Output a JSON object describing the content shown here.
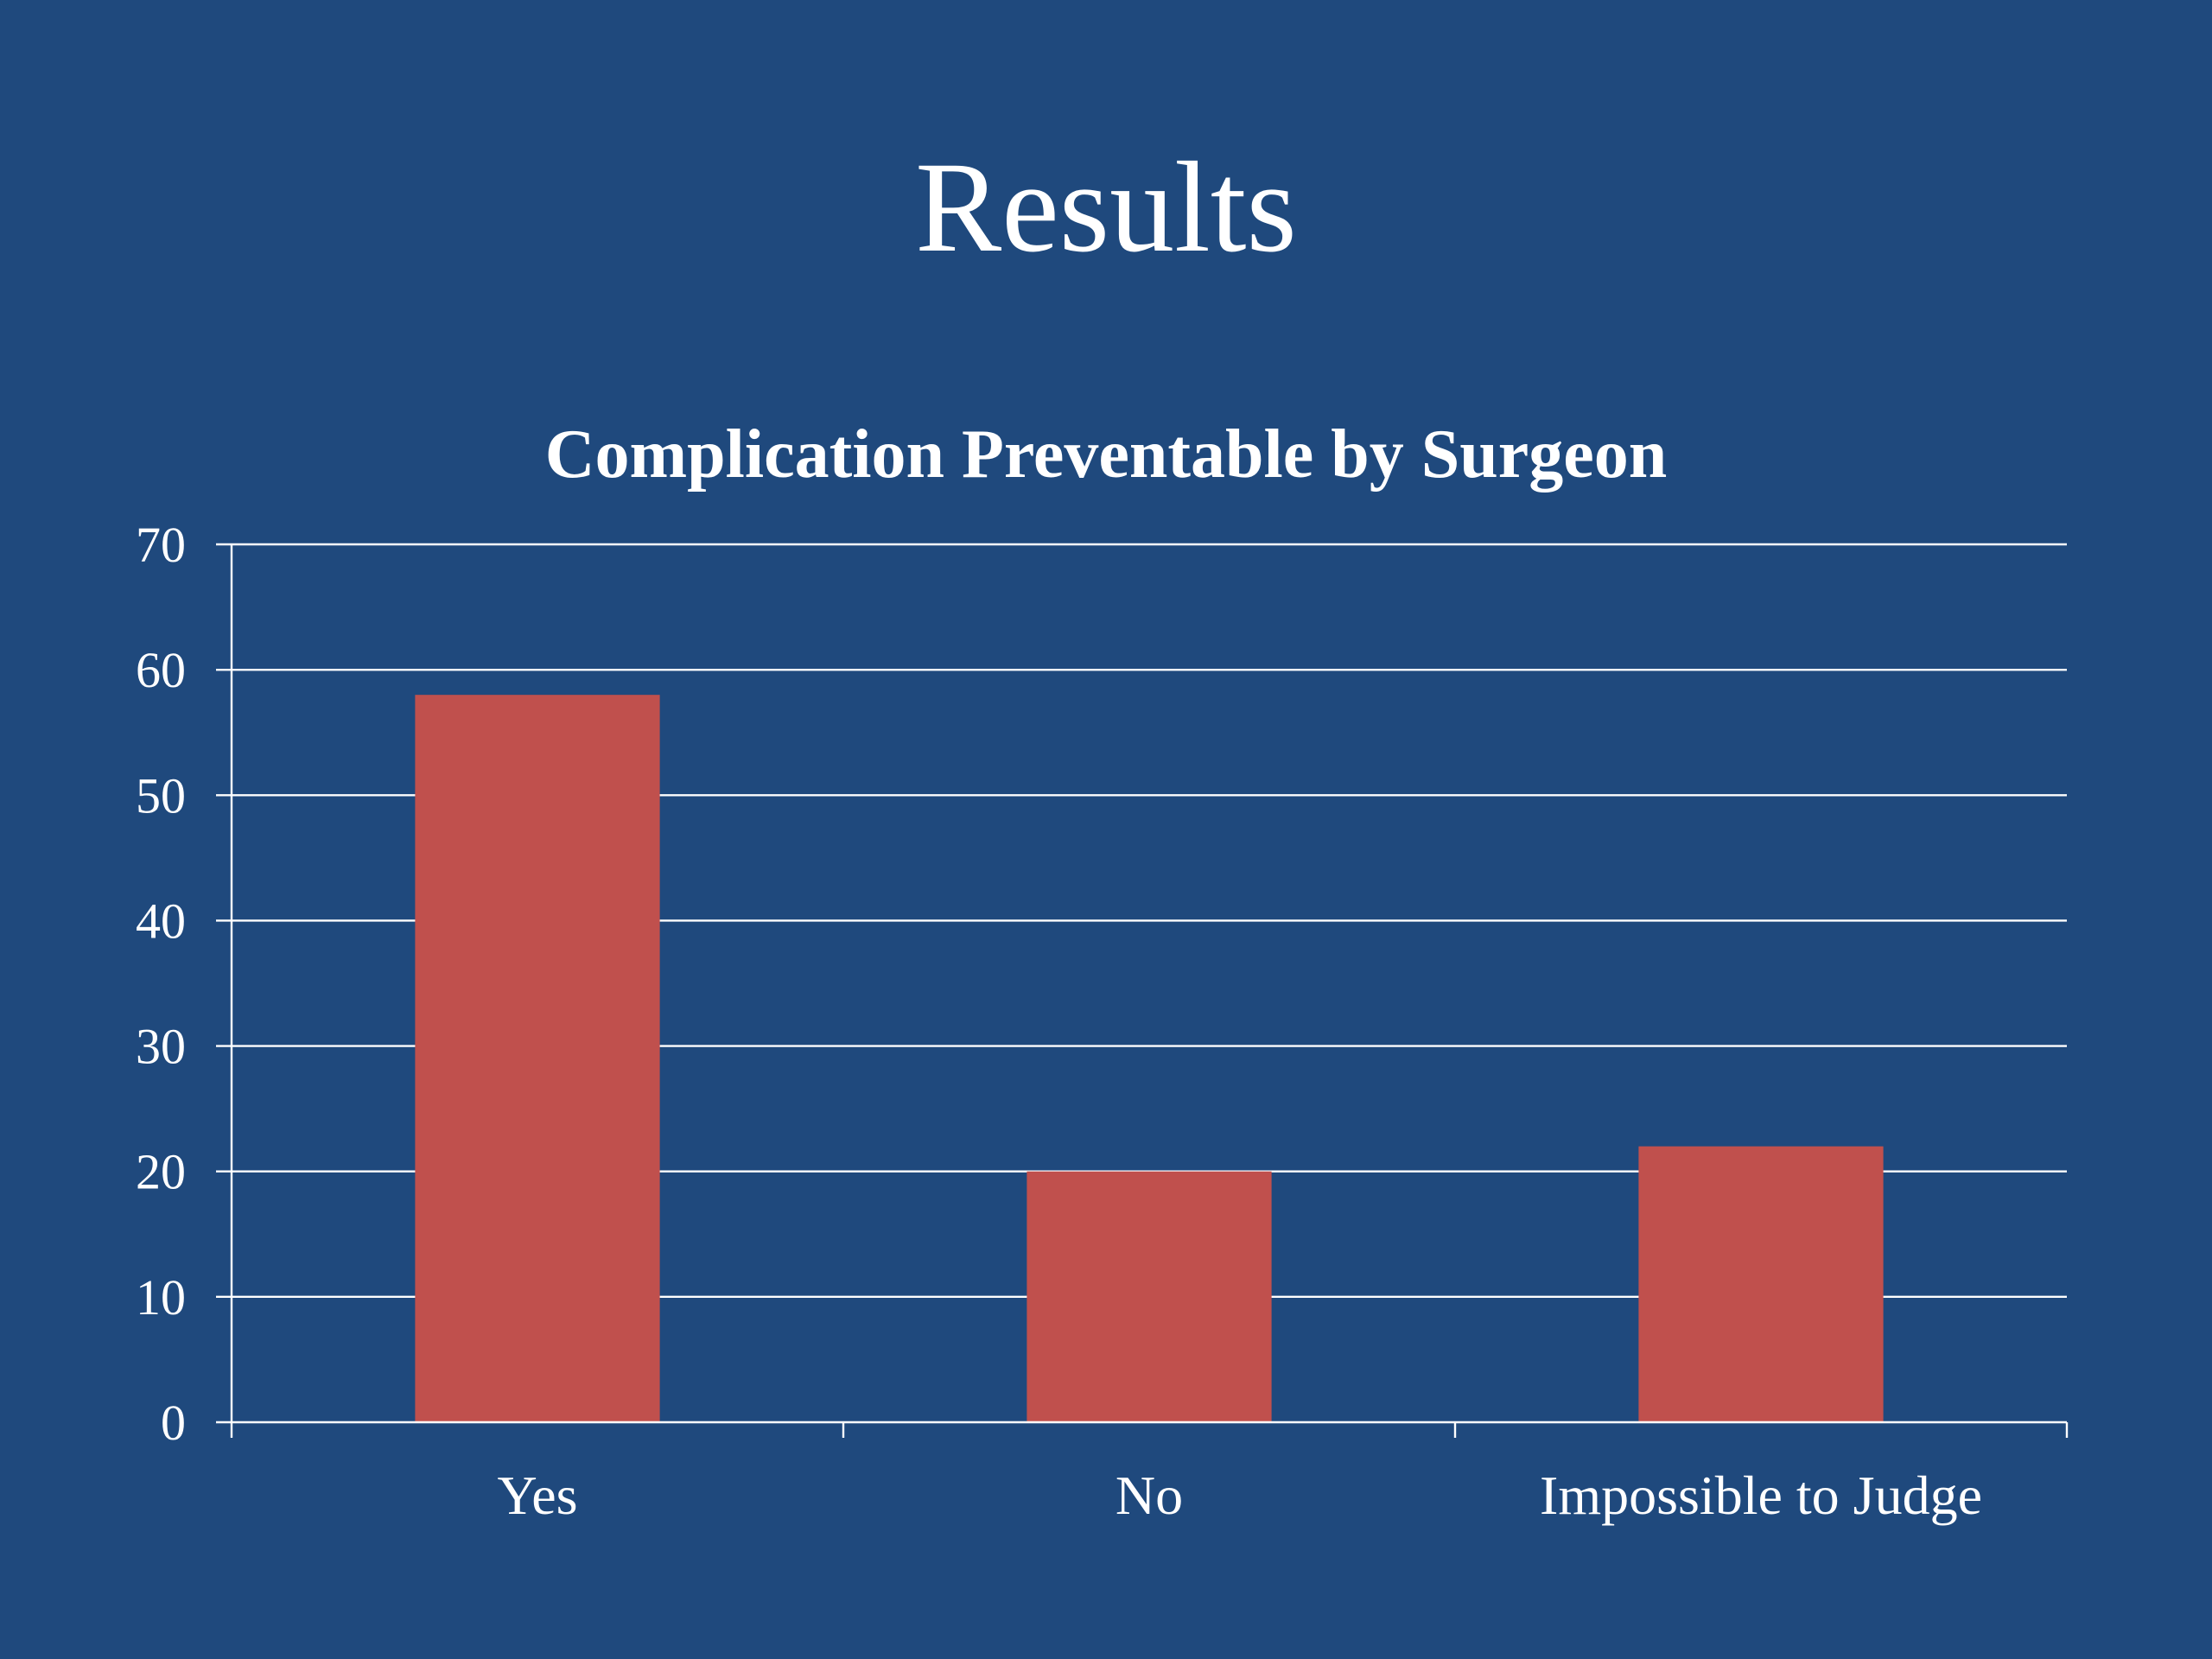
{
  "slide": {
    "title": "Results"
  },
  "colors": {
    "background": "#1f497d",
    "bar": "#c0504d",
    "text": "#ffffff",
    "gridline": "#ffffff"
  },
  "chart_data": {
    "type": "bar",
    "title": "Complication Preventable by Surgeon",
    "categories": [
      "Yes",
      "No",
      "Impossible to Judge"
    ],
    "series": [
      {
        "values": [
          58,
          20,
          22
        ]
      }
    ],
    "ylim": [
      0,
      70
    ],
    "yticks": [
      0,
      10,
      20,
      30,
      40,
      50,
      60,
      70
    ],
    "grid": true,
    "legend": "none",
    "xlabel": "",
    "ylabel": ""
  }
}
